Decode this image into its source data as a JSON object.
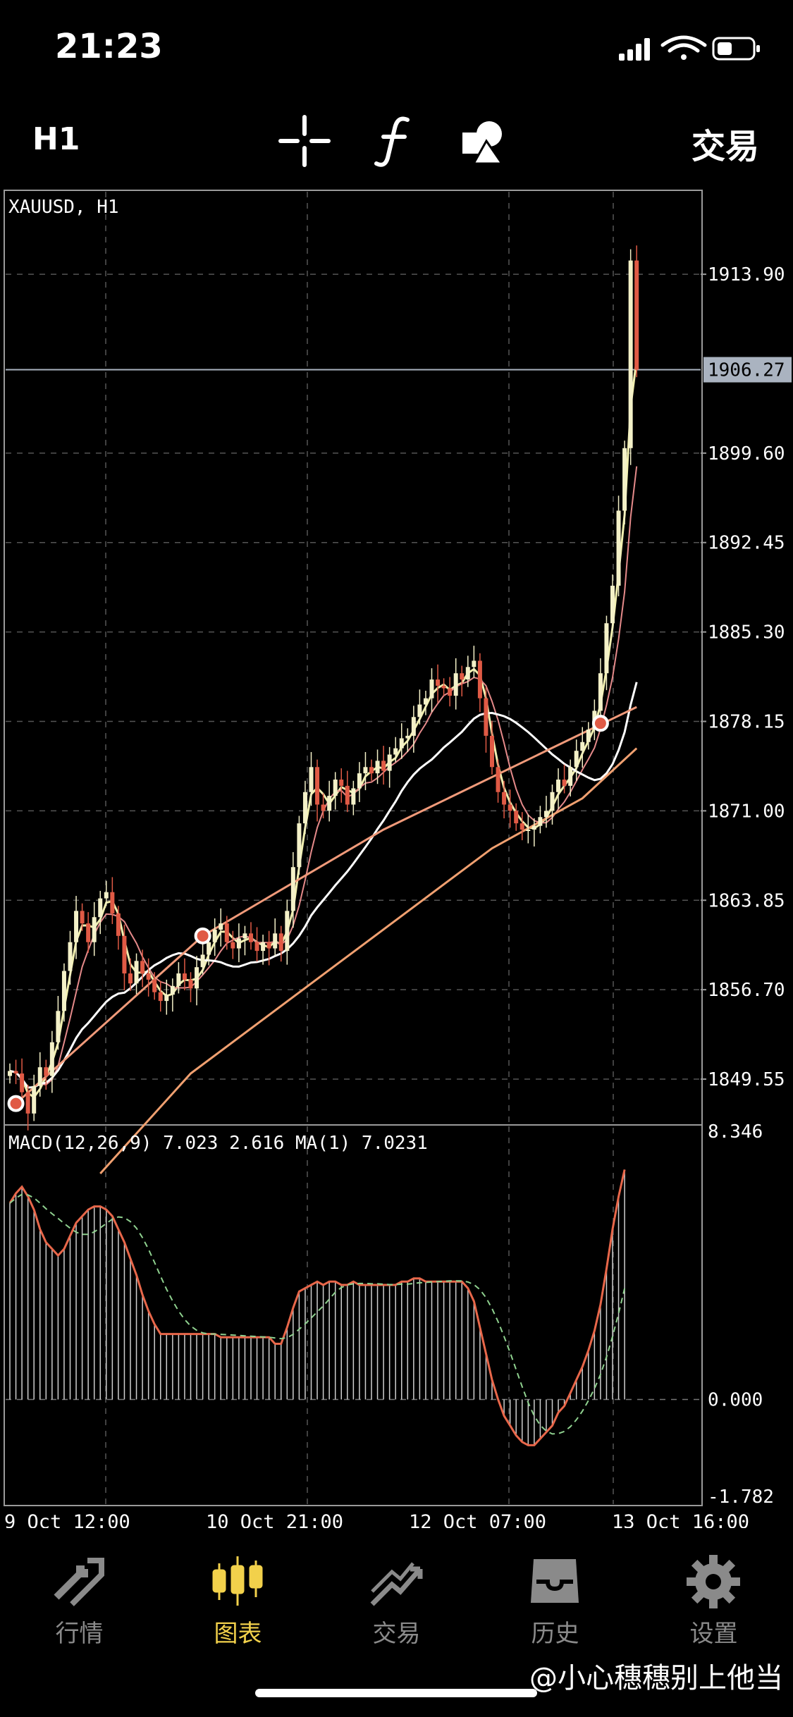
{
  "status_bar": {
    "time": "21:23"
  },
  "toolbar": {
    "timeframe": "H1",
    "crosshair_icon": "crosshair-icon",
    "indicator_icon": "function-f-icon",
    "objects_icon": "shapes-icon",
    "trade_label": "交易"
  },
  "chart_data": {
    "type": "candlestick",
    "symbol_label": "XAUUSD, H1",
    "price_axis": [
      "1913.90",
      "1899.60",
      "1892.45",
      "1885.30",
      "1878.15",
      "1871.00",
      "1863.85",
      "1856.70",
      "1849.55"
    ],
    "price_axis_values": [
      1913.9,
      1899.6,
      1892.45,
      1885.3,
      1878.15,
      1871.0,
      1863.85,
      1856.7,
      1849.55
    ],
    "current_price": "1906.27",
    "current_price_value": 1906.27,
    "ylim": [
      1846.0,
      1920.5
    ],
    "x_tick_labels": [
      "9 Oct 12:00",
      "10 Oct 21:00",
      "12 Oct 07:00",
      "13 Oct 16:00"
    ],
    "closes": [
      1850.2,
      1850.0,
      1848.5,
      1846.8,
      1849.0,
      1850.5,
      1849.8,
      1852.5,
      1855.0,
      1858.2,
      1860.5,
      1863.0,
      1862.0,
      1860.5,
      1862.5,
      1864.0,
      1864.5,
      1862.8,
      1861.0,
      1858.0,
      1857.2,
      1859.0,
      1858.0,
      1857.5,
      1856.5,
      1855.8,
      1856.3,
      1857.0,
      1858.0,
      1857.5,
      1856.8,
      1858.5,
      1859.5,
      1860.5,
      1861.5,
      1862.0,
      1860.5,
      1860.0,
      1860.8,
      1861.2,
      1860.5,
      1859.8,
      1860.5,
      1860.0,
      1861.2,
      1859.8,
      1863.0,
      1866.5,
      1870.0,
      1872.5,
      1874.5,
      1871.5,
      1871.0,
      1872.2,
      1873.5,
      1873.0,
      1871.5,
      1872.8,
      1874.0,
      1874.5,
      1874.0,
      1875.0,
      1874.2,
      1875.5,
      1876.0,
      1876.8,
      1877.0,
      1878.5,
      1879.5,
      1880.0,
      1881.5,
      1881.0,
      1880.8,
      1880.2,
      1882.0,
      1881.5,
      1882.5,
      1883.0,
      1880.0,
      1877.0,
      1874.5,
      1872.5,
      1871.5,
      1871.0,
      1870.0,
      1869.5,
      1869.5,
      1869.8,
      1870.5,
      1871.0,
      1872.5,
      1873.5,
      1873.0,
      1874.5,
      1875.8,
      1876.5,
      1877.5,
      1879.0,
      1882.0,
      1886.0,
      1889.0,
      1895.0,
      1900.0,
      1915.0,
      1906.27
    ],
    "macd_label": "MACD(12,26,9) 7.023 2.616 MA(1) 7.0231",
    "macd_axis": [
      "8.346",
      "0.000",
      "-1.782"
    ],
    "macd_ylim": [
      -3.2,
      8.346
    ],
    "macd_hist": [
      6.0,
      6.3,
      6.5,
      6.2,
      5.8,
      5.2,
      4.8,
      4.6,
      4.4,
      4.6,
      5.0,
      5.4,
      5.6,
      5.8,
      5.9,
      5.9,
      5.8,
      5.6,
      5.2,
      4.8,
      4.3,
      3.8,
      3.2,
      2.7,
      2.3,
      2.0,
      2.0,
      2.0,
      2.0,
      2.0,
      2.0,
      2.0,
      2.0,
      2.0,
      2.0,
      1.9,
      1.9,
      1.9,
      1.9,
      1.9,
      1.9,
      1.9,
      1.9,
      1.9,
      1.7,
      1.7,
      2.2,
      2.8,
      3.3,
      3.4,
      3.5,
      3.6,
      3.5,
      3.6,
      3.6,
      3.5,
      3.5,
      3.6,
      3.5,
      3.5,
      3.5,
      3.5,
      3.5,
      3.5,
      3.5,
      3.6,
      3.6,
      3.7,
      3.7,
      3.6,
      3.6,
      3.6,
      3.6,
      3.6,
      3.6,
      3.6,
      3.4,
      3.0,
      2.2,
      1.4,
      0.6,
      0.0,
      -0.5,
      -0.8,
      -1.1,
      -1.3,
      -1.4,
      -1.4,
      -1.2,
      -1.0,
      -0.8,
      -0.4,
      -0.2,
      0.2,
      0.6,
      1.0,
      1.5,
      2.1,
      2.9,
      4.0,
      5.2,
      6.2,
      7.023,
      7.023,
      7.023
    ],
    "macd_signal_color": "#8fd18f",
    "main_line_color": "#e8674a",
    "bull_color": "#f4f1c8",
    "bear_color": "#e05a45"
  },
  "tabbar": {
    "items": [
      {
        "label": "行情",
        "icon": "quotes-arrows-icon"
      },
      {
        "label": "图表",
        "icon": "chart-candles-icon",
        "active": true
      },
      {
        "label": "交易",
        "icon": "trade-trend-icon"
      },
      {
        "label": "历史",
        "icon": "history-inbox-icon"
      },
      {
        "label": "设置",
        "icon": "settings-gear-icon"
      }
    ]
  },
  "watermark": "@小心穗穗别上他当"
}
